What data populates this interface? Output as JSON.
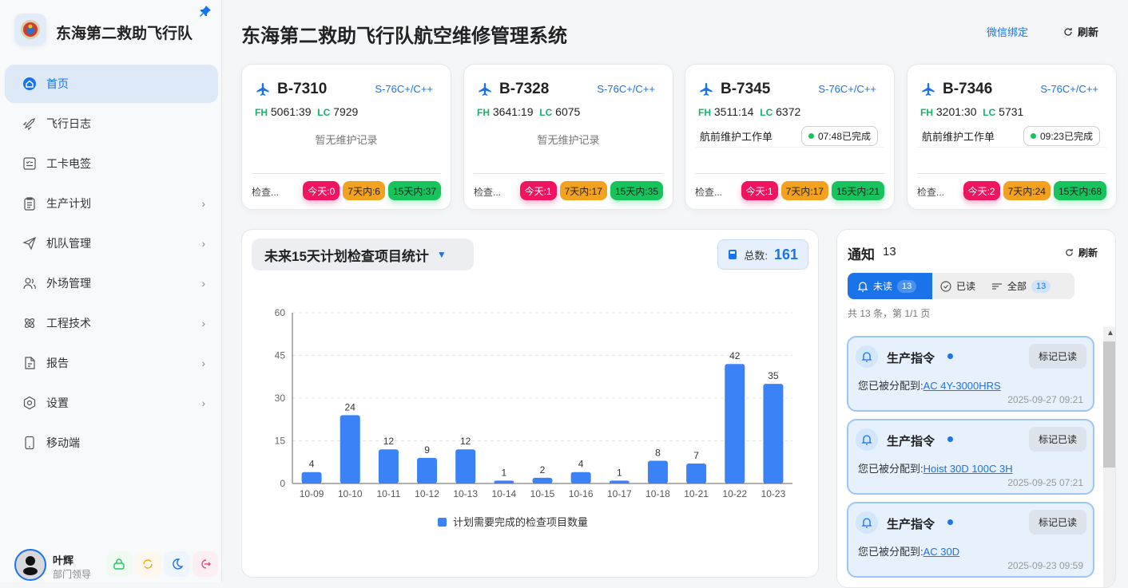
{
  "sidebar": {
    "brand": "东海第二救助飞行队",
    "items": [
      {
        "label": "首页",
        "icon": "home-icon",
        "active": true
      },
      {
        "label": "飞行日志",
        "icon": "rocket-icon"
      },
      {
        "label": "工卡电签",
        "icon": "checklist-icon"
      },
      {
        "label": "生产计划",
        "icon": "clipboard-icon",
        "chevron": true
      },
      {
        "label": "机队管理",
        "icon": "paper-plane-icon",
        "chevron": true
      },
      {
        "label": "外场管理",
        "icon": "users-icon",
        "chevron": true
      },
      {
        "label": "工程技术",
        "icon": "atom-icon",
        "chevron": true
      },
      {
        "label": "报告",
        "icon": "document-icon",
        "chevron": true
      },
      {
        "label": "设置",
        "icon": "hexagon-gear-icon",
        "chevron": true
      },
      {
        "label": "移动端",
        "icon": "mobile-icon"
      }
    ],
    "user": {
      "name": "叶辉",
      "role": "部门领导"
    }
  },
  "header": {
    "title": "东海第二救助飞行队航空维修管理系统",
    "wechat": "微信绑定",
    "refresh": "刷新"
  },
  "aircraft": [
    {
      "reg": "B-7310",
      "model": "S-76C+/C++",
      "fh_label": "FH",
      "fh": "5061:39",
      "lc_label": "LC",
      "lc": "7929",
      "record": "暂无维护记录",
      "check": "检查...",
      "today": "今天:0",
      "d7": "7天内:6",
      "d15": "15天内:37"
    },
    {
      "reg": "B-7328",
      "model": "S-76C+/C++",
      "fh_label": "FH",
      "fh": "3641:19",
      "lc_label": "LC",
      "lc": "6075",
      "record": "暂无维护记录",
      "check": "检查...",
      "today": "今天:1",
      "d7": "7天内:17",
      "d15": "15天内:35"
    },
    {
      "reg": "B-7345",
      "model": "S-76C+/C++",
      "fh_label": "FH",
      "fh": "3511:14",
      "lc_label": "LC",
      "lc": "6372",
      "task": "航前维护工作单",
      "task_status": "07:48已完成",
      "check": "检查...",
      "today": "今天:1",
      "d7": "7天内:17",
      "d15": "15天内:21"
    },
    {
      "reg": "B-7346",
      "model": "S-76C+/C++",
      "fh_label": "FH",
      "fh": "3201:30",
      "lc_label": "LC",
      "lc": "5731",
      "task": "航前维护工作单",
      "task_status": "09:23已完成",
      "check": "检查...",
      "today": "今天:2",
      "d7": "7天内:24",
      "d15": "15天内:68"
    }
  ],
  "chart_panel": {
    "selector": "未来15天计划检查项目统计",
    "total_label": "总数:",
    "total": "161"
  },
  "chart_data": {
    "type": "bar",
    "categories": [
      "10-09",
      "10-10",
      "10-11",
      "10-12",
      "10-13",
      "10-14",
      "10-15",
      "10-16",
      "10-17",
      "10-18",
      "10-21",
      "10-22",
      "10-23"
    ],
    "values": [
      4,
      24,
      12,
      9,
      12,
      1,
      2,
      4,
      1,
      8,
      7,
      42,
      35
    ],
    "ylim": [
      0,
      60
    ],
    "yticks": [
      0,
      15,
      30,
      45,
      60
    ],
    "grid": true,
    "legend": "bottom",
    "series_name": "计划需要完成的检查项目数量",
    "color": "#3b82f6"
  },
  "notifications": {
    "title": "通知",
    "count": "13",
    "refresh": "刷新",
    "tabs": [
      {
        "label": "未读",
        "count": "13"
      },
      {
        "label": "已读"
      },
      {
        "label": "全部",
        "count": "13"
      }
    ],
    "page_info": "共 13 条，第 1/1 页",
    "mark_label": "标记已读",
    "items": [
      {
        "type": "生产指令",
        "prefix": "您已被分配到:",
        "link": "AC 4Y-3000HRS",
        "time": "2025-09-27 09:21"
      },
      {
        "type": "生产指令",
        "prefix": "您已被分配到:",
        "link": "Hoist 30D 100C 3H",
        "time": "2025-09-25 07:21"
      },
      {
        "type": "生产指令",
        "prefix": "您已被分配到:",
        "link": "AC 30D",
        "time": "2025-09-23 09:59"
      }
    ]
  }
}
